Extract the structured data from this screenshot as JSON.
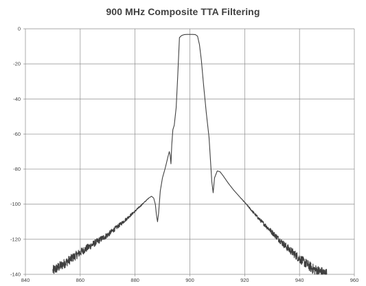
{
  "chart_data": {
    "type": "line",
    "title": "900 MHz Composite TTA Filtering",
    "xlabel": "",
    "ylabel": "",
    "xlim": [
      840,
      960
    ],
    "ylim": [
      -140,
      0
    ],
    "x_ticks": [
      840,
      860,
      880,
      900,
      920,
      940,
      960
    ],
    "y_ticks": [
      0,
      -20,
      -40,
      -60,
      -80,
      -100,
      -120,
      -140
    ],
    "x_tick_labels": [
      "840",
      "860",
      "880",
      "900",
      "920",
      "940",
      "960"
    ],
    "y_tick_labels": [
      "0",
      "-20",
      "-40",
      "-60",
      "-80",
      "-100",
      "-120",
      "-140"
    ],
    "grid": true,
    "legend": "none",
    "colors": {
      "line": "#3f3f3f",
      "grid": "#8c8c8c",
      "axis": "#8c8c8c",
      "text": "#404040"
    },
    "series": [
      {
        "x": [
          850,
          855,
          860,
          865,
          870,
          875,
          880,
          883,
          885,
          886,
          886.8,
          887.4,
          887.8,
          888.2,
          888.6,
          889.2,
          890,
          891,
          892,
          892.5,
          892.8,
          893.1,
          893.4,
          893.8,
          894.3,
          895,
          895.6,
          896.2,
          897,
          898,
          899,
          900,
          901,
          902,
          902.8,
          903.5,
          904.2,
          905,
          906,
          907,
          908,
          908.5,
          909,
          910,
          911,
          912,
          914,
          916,
          920,
          925,
          930,
          935,
          940,
          945,
          950
        ],
        "y": [
          -138,
          -133,
          -127.5,
          -122.5,
          -117.5,
          -111,
          -104,
          -99.5,
          -96.5,
          -95.5,
          -96.5,
          -100,
          -106,
          -110,
          -105,
          -92.5,
          -85,
          -79.5,
          -73,
          -70,
          -72,
          -77,
          -66,
          -57.5,
          -55,
          -45,
          -26,
          -5,
          -3.8,
          -3.3,
          -3.2,
          -3.2,
          -3.2,
          -3.3,
          -4.2,
          -9,
          -18,
          -32,
          -48,
          -62,
          -87,
          -93.5,
          -85,
          -81,
          -81.5,
          -83.5,
          -88,
          -92,
          -99,
          -108,
          -116,
          -124,
          -131,
          -137,
          -140
        ]
      }
    ]
  }
}
